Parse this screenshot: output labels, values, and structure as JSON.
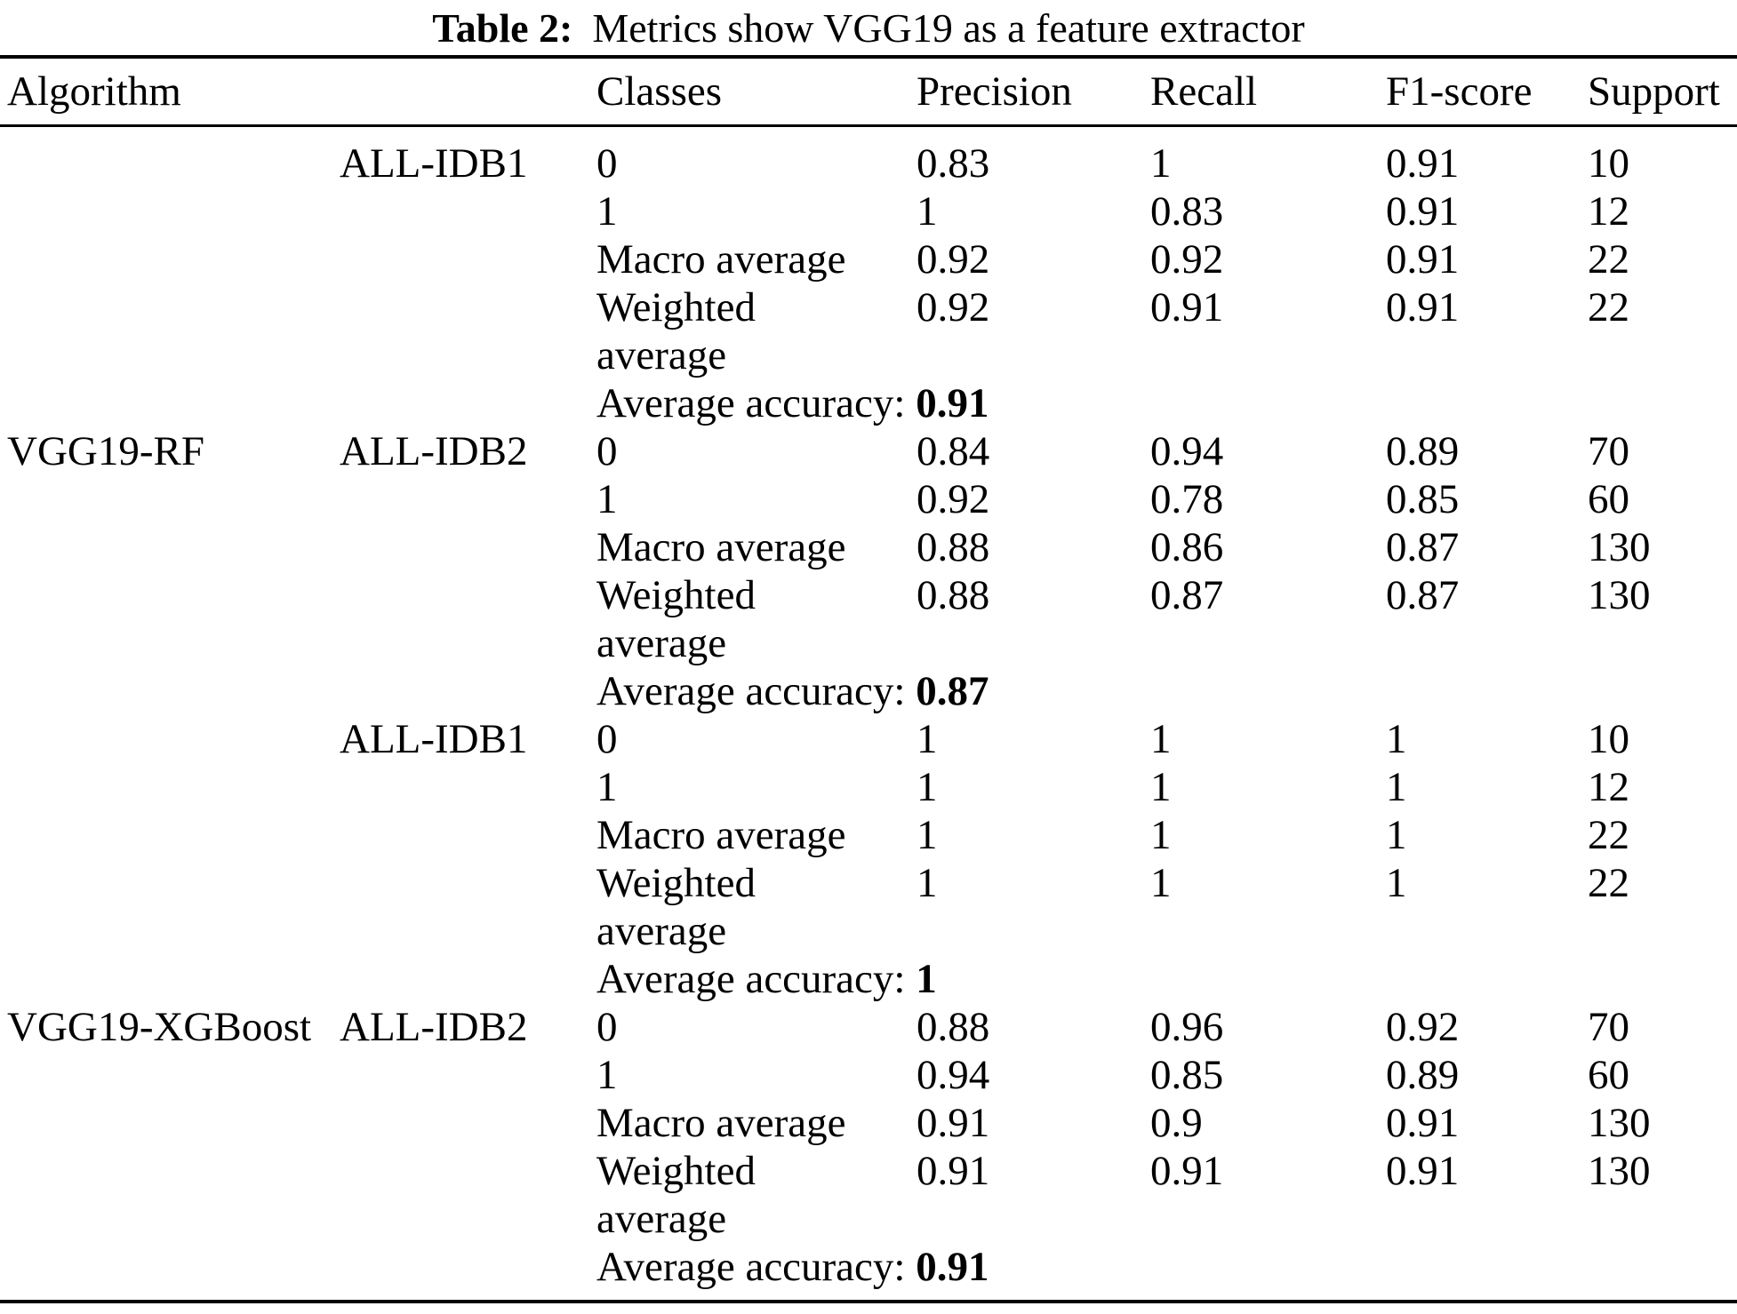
{
  "caption": {
    "label": "Table 2:",
    "text": "Metrics show VGG19 as a feature extractor"
  },
  "colors": {
    "text": "#000000",
    "background": "#ffffff",
    "rule": "#000000"
  },
  "table": {
    "headers": [
      "Algorithm",
      "Classes",
      "Precision",
      "Recall",
      "F1-score",
      "Support"
    ],
    "groups": [
      {
        "algorithm": "VGG19-RF",
        "blocks": [
          {
            "dataset": "ALL-IDB1",
            "rows": [
              {
                "label": "0",
                "precision": "0.83",
                "recall": "1",
                "f1": "0.91",
                "support": "10"
              },
              {
                "label": "1",
                "precision": "1",
                "recall": "0.83",
                "f1": "0.91",
                "support": "12"
              },
              {
                "label": "Macro average",
                "precision": "0.92",
                "recall": "0.92",
                "f1": "0.91",
                "support": "22"
              },
              {
                "label": "Weighted\naverage",
                "precision": "0.92",
                "recall": "0.91",
                "f1": "0.91",
                "support": "22"
              }
            ],
            "accuracy_label": "Average accuracy:",
            "accuracy_value": "0.91"
          },
          {
            "dataset": "ALL-IDB2",
            "rows": [
              {
                "label": "0",
                "precision": "0.84",
                "recall": "0.94",
                "f1": "0.89",
                "support": "70"
              },
              {
                "label": "1",
                "precision": "0.92",
                "recall": "0.78",
                "f1": "0.85",
                "support": "60"
              },
              {
                "label": "Macro average",
                "precision": "0.88",
                "recall": "0.86",
                "f1": "0.87",
                "support": "130"
              },
              {
                "label": "Weighted\naverage",
                "precision": "0.88",
                "recall": "0.87",
                "f1": "0.87",
                "support": "130"
              }
            ],
            "accuracy_label": "Average accuracy:",
            "accuracy_value": "0.87"
          }
        ]
      },
      {
        "algorithm": "VGG19-XGBoost",
        "blocks": [
          {
            "dataset": "ALL-IDB1",
            "rows": [
              {
                "label": "0",
                "precision": "1",
                "recall": "1",
                "f1": "1",
                "support": "10"
              },
              {
                "label": "1",
                "precision": "1",
                "recall": "1",
                "f1": "1",
                "support": "12"
              },
              {
                "label": "Macro average",
                "precision": "1",
                "recall": "1",
                "f1": "1",
                "support": "22"
              },
              {
                "label": "Weighted\naverage",
                "precision": "1",
                "recall": "1",
                "f1": "1",
                "support": "22"
              }
            ],
            "accuracy_label": "Average accuracy:",
            "accuracy_value": "1"
          },
          {
            "dataset": "ALL-IDB2",
            "rows": [
              {
                "label": "0",
                "precision": "0.88",
                "recall": "0.96",
                "f1": "0.92",
                "support": "70"
              },
              {
                "label": "1",
                "precision": "0.94",
                "recall": "0.85",
                "f1": "0.89",
                "support": "60"
              },
              {
                "label": "Macro average",
                "precision": "0.91",
                "recall": "0.9",
                "f1": "0.91",
                "support": "130"
              },
              {
                "label": "Weighted\naverage",
                "precision": "0.91",
                "recall": "0.91",
                "f1": "0.91",
                "support": "130"
              }
            ],
            "accuracy_label": "Average accuracy:",
            "accuracy_value": "0.91"
          }
        ]
      }
    ]
  }
}
